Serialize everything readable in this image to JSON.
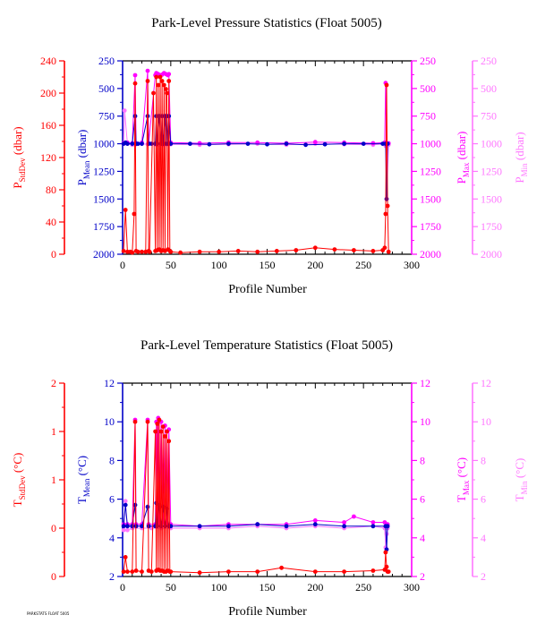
{
  "colors": {
    "stddev": "#ff0000",
    "mean": "#0000c8",
    "max": "#ff00ff",
    "min": "#ff77ff",
    "axis": "#000000"
  },
  "footer": "PARKSTATS FLOAT 5005",
  "chart_data": [
    {
      "type": "scatter",
      "title": "Park-Level Pressure Statistics (Float 5005)",
      "xlabel": "Profile Number",
      "xlim": [
        0,
        300
      ],
      "xticks": [
        0,
        50,
        100,
        150,
        200,
        250,
        300
      ],
      "grid": false,
      "axes": {
        "stddev": {
          "label": "P",
          "sub": "StdDev",
          "unit": " (dbar)",
          "range": [
            0,
            240
          ],
          "ticks": [
            0,
            40,
            80,
            120,
            160,
            200,
            240
          ],
          "tick_labels": [
            "0",
            "40",
            "80",
            "120",
            "160",
            "200",
            "240"
          ],
          "inverted": false
        },
        "mean": {
          "label": "P",
          "sub": "Mean",
          "unit": " (dbar)",
          "range": [
            250,
            2000
          ],
          "ticks": [
            250,
            500,
            750,
            1000,
            1250,
            1500,
            1750,
            2000
          ],
          "tick_labels": [
            "250",
            "500",
            "750",
            "1000",
            "1250",
            "1500",
            "1750",
            "2000"
          ],
          "inverted": true
        },
        "max": {
          "label": "P",
          "sub": "Max",
          "unit": " (dbar)",
          "range": [
            250,
            2000
          ],
          "ticks": [
            250,
            500,
            750,
            1000,
            1250,
            1500,
            1750,
            2000
          ],
          "tick_labels": [
            "250",
            "500",
            "750",
            "1000",
            "1250",
            "1500",
            "1750",
            "2000"
          ],
          "inverted": true
        },
        "min": {
          "label": "P",
          "sub": "Min",
          "unit": " (dbar)",
          "range": [
            250,
            2000
          ],
          "ticks": [
            250,
            500,
            750,
            1000,
            1250,
            1500,
            1750,
            2000
          ],
          "tick_labels": [
            "250",
            "500",
            "750",
            "1000",
            "1250",
            "1500",
            "1750",
            "2000"
          ],
          "inverted": true
        }
      },
      "series": [
        {
          "key": "stddev",
          "x": [
            1,
            3,
            5,
            8,
            10,
            12,
            13,
            14,
            16,
            20,
            24,
            26,
            27,
            28,
            32,
            34,
            35,
            36,
            37,
            38,
            39,
            40,
            41,
            42,
            43,
            44,
            45,
            46,
            47,
            48,
            49,
            50,
            60,
            80,
            100,
            120,
            140,
            160,
            180,
            200,
            220,
            240,
            260,
            270,
            272,
            273,
            274,
            275,
            276
          ],
          "y": [
            4,
            55,
            3,
            3,
            2,
            50,
            212,
            4,
            3,
            3,
            3,
            215,
            4,
            3,
            200,
            4,
            220,
            5,
            210,
            6,
            220,
            4,
            215,
            5,
            210,
            4,
            205,
            200,
            6,
            215,
            4,
            3,
            2,
            3,
            3,
            4,
            3,
            4,
            5,
            8,
            6,
            5,
            4,
            5,
            8,
            50,
            210,
            60,
            3
          ]
        },
        {
          "key": "mean",
          "x": [
            1,
            3,
            5,
            10,
            13,
            14,
            16,
            20,
            26,
            27,
            30,
            34,
            35,
            36,
            38,
            40,
            41,
            42,
            44,
            45,
            46,
            47,
            48,
            50,
            70,
            90,
            110,
            130,
            150,
            170,
            190,
            210,
            230,
            250,
            270,
            273,
            274,
            275
          ],
          "y": [
            1000,
            990,
            1000,
            1000,
            750,
            1000,
            1000,
            1000,
            750,
            1000,
            1000,
            1000,
            750,
            1000,
            750,
            1000,
            750,
            1000,
            750,
            1000,
            750,
            1000,
            750,
            1000,
            1000,
            1005,
            1000,
            1000,
            1005,
            1000,
            1010,
            1005,
            1000,
            1000,
            1000,
            1000,
            1500,
            1000
          ]
        },
        {
          "key": "max",
          "x": [
            1,
            5,
            10,
            13,
            14,
            20,
            26,
            27,
            34,
            35,
            37,
            39,
            41,
            43,
            45,
            47,
            48,
            50,
            80,
            110,
            140,
            170,
            200,
            230,
            260,
            272,
            273,
            274,
            276
          ],
          "y": [
            995,
            990,
            995,
            380,
            995,
            990,
            340,
            995,
            380,
            360,
            370,
            380,
            375,
            360,
            370,
            380,
            370,
            990,
            995,
            990,
            990,
            995,
            985,
            990,
            995,
            990,
            450,
            1000,
            995
          ]
        },
        {
          "key": "min",
          "x": [
            1,
            2,
            5,
            10,
            13,
            14,
            20,
            26,
            27,
            34,
            35,
            36,
            38,
            40,
            42,
            44,
            46,
            48,
            50,
            80,
            110,
            140,
            170,
            200,
            230,
            260,
            272,
            273,
            274,
            276
          ],
          "y": [
            1000,
            700,
            1000,
            1010,
            1000,
            1005,
            1000,
            1005,
            1000,
            1000,
            1010,
            1000,
            1005,
            1000,
            1010,
            1000,
            1005,
            1000,
            1005,
            1010,
            1005,
            1000,
            1010,
            1000,
            1005,
            1010,
            1000,
            1020,
            1500,
            1010
          ]
        }
      ]
    },
    {
      "type": "scatter",
      "title": "Park-Level Temperature Statistics (Float 5005)",
      "xlabel": "Profile Number",
      "xlim": [
        0,
        300
      ],
      "xticks": [
        0,
        50,
        100,
        150,
        200,
        250,
        300
      ],
      "grid": false,
      "axes": {
        "stddev": {
          "label": "T",
          "sub": "StdDev",
          "unit": " (°C)",
          "range": [
            0,
            2
          ],
          "ticks": [
            0,
            0.5,
            1,
            1.5,
            2
          ],
          "tick_labels": [
            "0",
            "0",
            "1",
            "1",
            "2"
          ],
          "inverted": false
        },
        "mean": {
          "label": "T",
          "sub": "Mean",
          "unit": " (°C)",
          "range": [
            2,
            12
          ],
          "ticks": [
            2,
            4,
            6,
            8,
            10,
            12
          ],
          "tick_labels": [
            "2",
            "4",
            "6",
            "8",
            "10",
            "12"
          ],
          "inverted": false
        },
        "max": {
          "label": "T",
          "sub": "Max",
          "unit": " (°C)",
          "range": [
            2,
            12
          ],
          "ticks": [
            2,
            4,
            6,
            8,
            10,
            12
          ],
          "tick_labels": [
            "2",
            "4",
            "6",
            "8",
            "10",
            "12"
          ],
          "inverted": false
        },
        "min": {
          "label": "T",
          "sub": "Min",
          "unit": " (°C)",
          "range": [
            2,
            12
          ],
          "ticks": [
            2,
            4,
            6,
            8,
            10,
            12
          ],
          "tick_labels": [
            "2",
            "4",
            "6",
            "8",
            "10",
            "12"
          ],
          "inverted": false
        }
      },
      "series": [
        {
          "key": "stddev",
          "x": [
            1,
            3,
            5,
            10,
            13,
            14,
            20,
            26,
            27,
            30,
            34,
            35,
            36,
            37,
            38,
            39,
            40,
            41,
            42,
            43,
            44,
            45,
            46,
            47,
            48,
            49,
            50,
            80,
            110,
            140,
            165,
            200,
            230,
            260,
            272,
            273,
            274,
            275,
            276
          ],
          "y": [
            0.05,
            0.2,
            0.05,
            0.05,
            1.6,
            0.06,
            0.05,
            1.6,
            0.06,
            0.05,
            1.5,
            0.06,
            1.58,
            0.07,
            1.62,
            0.06,
            1.5,
            0.06,
            1.55,
            0.05,
            1.45,
            0.05,
            1.5,
            0.06,
            1.4,
            0.05,
            0.05,
            0.04,
            0.05,
            0.05,
            0.09,
            0.05,
            0.05,
            0.06,
            0.07,
            0.25,
            0.1,
            0.05,
            0.05
          ]
        },
        {
          "key": "mean",
          "x": [
            1,
            3,
            5,
            10,
            13,
            14,
            20,
            26,
            27,
            34,
            35,
            36,
            38,
            40,
            42,
            44,
            46,
            48,
            50,
            80,
            110,
            140,
            170,
            200,
            230,
            260,
            273,
            274,
            275
          ],
          "y": [
            4.6,
            5.7,
            4.6,
            4.6,
            5.7,
            4.6,
            4.6,
            5.6,
            4.6,
            4.6,
            5.8,
            4.6,
            5.7,
            4.6,
            5.6,
            4.6,
            5.5,
            4.6,
            4.6,
            4.6,
            4.6,
            4.7,
            4.6,
            4.7,
            4.6,
            4.6,
            4.6,
            3.4,
            4.6
          ]
        },
        {
          "key": "max",
          "x": [
            1,
            5,
            10,
            13,
            14,
            20,
            26,
            27,
            34,
            35,
            36,
            37,
            38,
            40,
            42,
            44,
            46,
            48,
            50,
            80,
            110,
            140,
            170,
            200,
            230,
            240,
            260,
            272,
            275
          ],
          "y": [
            4.7,
            4.7,
            4.7,
            10.1,
            4.7,
            4.7,
            10.1,
            4.7,
            4.7,
            10,
            4.8,
            10.2,
            4.7,
            10,
            4.8,
            9.8,
            4.7,
            9.6,
            4.7,
            4.6,
            4.7,
            4.7,
            4.7,
            4.9,
            4.8,
            5.1,
            4.8,
            4.8,
            4.7
          ]
        },
        {
          "key": "min",
          "x": [
            1,
            3,
            5,
            10,
            20,
            30,
            40,
            50,
            80,
            110,
            140,
            170,
            200,
            230,
            260,
            272,
            273,
            274,
            275
          ],
          "y": [
            4.4,
            5.9,
            4.4,
            4.5,
            4.5,
            4.5,
            4.5,
            4.5,
            4.5,
            4.5,
            4.6,
            4.5,
            4.6,
            4.5,
            4.6,
            4.5,
            3.5,
            4.2,
            4.5
          ]
        }
      ]
    }
  ]
}
